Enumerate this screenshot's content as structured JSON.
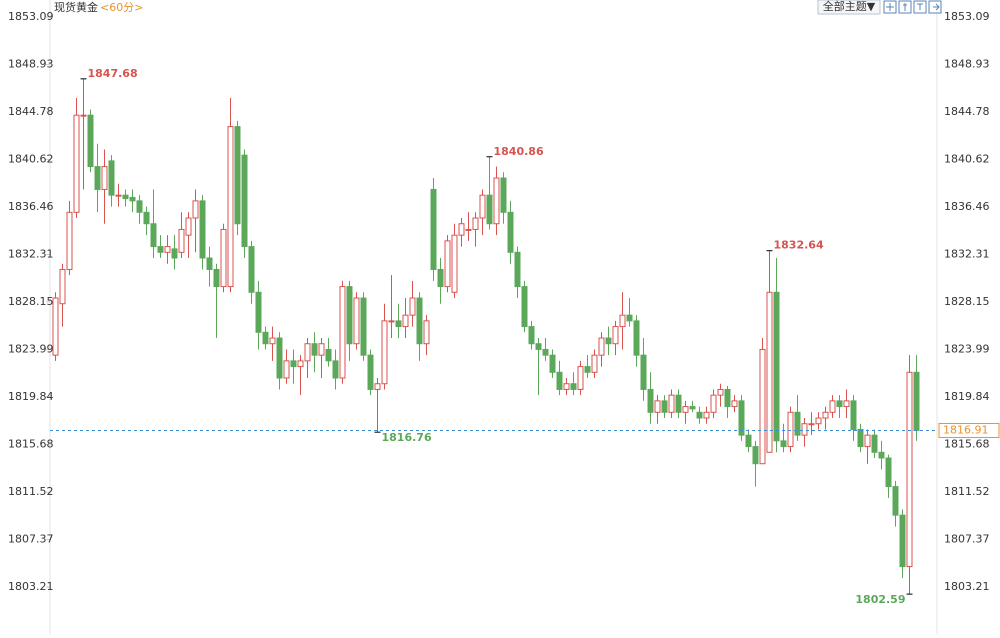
{
  "header": {
    "symbol": "现货黄金",
    "period": "<60分>",
    "theme_button": "全部主题▼"
  },
  "chart_data": {
    "type": "candlestick",
    "ylim": [
      1799.1,
      1854.14
    ],
    "yticks": [
      1853.09,
      1848.93,
      1844.78,
      1840.62,
      1836.46,
      1832.31,
      1828.15,
      1823.99,
      1819.84,
      1815.68,
      1811.52,
      1807.37,
      1803.21
    ],
    "up_color": "#d9534f",
    "down_color": "#5ca85b",
    "last_price": 1816.91,
    "annotations": [
      1847.68,
      1840.86,
      1832.64,
      1816.76,
      1802.59
    ],
    "open": [
      1823.5,
      1828,
      1831,
      1836,
      1844.5,
      1844.5,
      1840,
      1838,
      1840.5,
      1837.5,
      1837.5,
      1837.3,
      1837,
      1836,
      1835,
      1833,
      1832.5,
      1832.8,
      1832.5,
      1834,
      1835.5,
      1837,
      1832,
      1831,
      1829.5,
      1829.5,
      1843.5,
      1841,
      1833,
      1829,
      1825.5,
      1824.5,
      1825,
      1821.5,
      1823,
      1822.5,
      1823,
      1824.5,
      1823.5,
      1824,
      1823,
      1821.5,
      1829.5,
      1824.5,
      1828.5,
      1823.5,
      1820.5,
      1821,
      1826.5,
      1826.5,
      1826,
      1827,
      1828.5,
      1824.5,
      1838,
      1831,
      1829.5,
      1829,
      1834,
      1834.5,
      1834.5,
      1835.5,
      1837.5,
      1835,
      1839,
      1836,
      1832.5,
      1829.5,
      1826,
      1824.5,
      1824,
      1823.5,
      1822,
      1820.5,
      1821,
      1820.5,
      1822.5,
      1822,
      1823.5,
      1825,
      1824.5,
      1826,
      1827,
      1826.5,
      1823.5,
      1820.5,
      1818.5,
      1819.5,
      1818.5,
      1820,
      1818.5,
      1819,
      1818.5,
      1818,
      1818.5,
      1820,
      1820.5,
      1819,
      1819.5,
      1816.5,
      1815.5,
      1814,
      1815,
      1829,
      1816,
      1815.5,
      1818.5,
      1816.5,
      1817.5,
      1817.5,
      1818,
      1818.5,
      1819.5,
      1819,
      1819.5,
      1817,
      1815.5,
      1816.5,
      1815,
      1814.5,
      1812,
      1809.5,
      1805,
      1822
    ],
    "high": [
      1829,
      1831.5,
      1837,
      1846,
      1847.68,
      1845,
      1842,
      1841.5,
      1841,
      1838.5,
      1838,
      1838,
      1837.5,
      1836.5,
      1838,
      1834,
      1834,
      1834,
      1836,
      1836,
      1838,
      1837.5,
      1833,
      1831.5,
      1835,
      1846,
      1844,
      1841.5,
      1833.5,
      1830,
      1826,
      1826,
      1825.5,
      1824,
      1824,
      1823.5,
      1825,
      1825.5,
      1825,
      1825,
      1824,
      1830,
      1830,
      1829,
      1829,
      1824,
      1821.5,
      1828,
      1830.5,
      1828,
      1828.5,
      1830,
      1829,
      1827,
      1839,
      1832,
      1834,
      1835,
      1835.5,
      1836,
      1836,
      1838,
      1840.86,
      1840,
      1839.5,
      1837,
      1833,
      1830,
      1826.5,
      1825,
      1825,
      1824,
      1823,
      1821.5,
      1822,
      1823,
      1823.5,
      1824,
      1825.5,
      1826,
      1826.5,
      1829,
      1828.5,
      1827,
      1825,
      1822,
      1820,
      1820,
      1820.5,
      1820.5,
      1819.5,
      1819.5,
      1819,
      1819,
      1820.5,
      1821,
      1820.8,
      1820,
      1820,
      1817,
      1816,
      1825,
      1832.64,
      1832,
      1817.5,
      1819,
      1820,
      1818,
      1818.5,
      1818.5,
      1819,
      1820,
      1820,
      1820.5,
      1820,
      1817.5,
      1817,
      1817,
      1816,
      1814.8,
      1812.5,
      1810,
      1823.5,
      1823.5
    ],
    "low": [
      1823,
      1826,
      1830.5,
      1835.5,
      1838,
      1839.5,
      1836,
      1835,
      1836.5,
      1836.5,
      1836.5,
      1836,
      1835,
      1834,
      1832,
      1832,
      1831.5,
      1831,
      1832,
      1832,
      1832.5,
      1831,
      1829.5,
      1825,
      1829,
      1829,
      1834,
      1832,
      1828,
      1824,
      1824,
      1823,
      1820.5,
      1821,
      1821,
      1820,
      1821.5,
      1822,
      1821.5,
      1822.5,
      1820.5,
      1821,
      1823,
      1824,
      1823,
      1820,
      1816.76,
      1820.5,
      1825,
      1825,
      1825,
      1826,
      1823,
      1823.5,
      1830,
      1828,
      1829,
      1828.5,
      1833,
      1833.5,
      1833,
      1834,
      1834.5,
      1834,
      1835,
      1831.5,
      1828.5,
      1825.5,
      1824,
      1820,
      1823,
      1821.5,
      1820,
      1820,
      1820,
      1820,
      1821.5,
      1821.5,
      1822.5,
      1823.5,
      1823.5,
      1824,
      1826,
      1822.5,
      1819.5,
      1817.5,
      1817.5,
      1818,
      1818,
      1818,
      1817.5,
      1818.5,
      1817.5,
      1817.5,
      1818,
      1819,
      1818,
      1818.5,
      1816,
      1815,
      1812,
      1814,
      1815,
      1815,
      1815,
      1815,
      1816,
      1815.5,
      1816.5,
      1817,
      1817,
      1818,
      1818,
      1818,
      1816,
      1815,
      1814,
      1814.5,
      1813.5,
      1811,
      1808.5,
      1804,
      1802.59,
      1816
    ],
    "close": [
      1828.5,
      1831,
      1836,
      1844.5,
      1844.5,
      1840,
      1838,
      1840,
      1837.5,
      1837.5,
      1837.2,
      1837,
      1836,
      1835,
      1833,
      1832.5,
      1833,
      1832,
      1834.5,
      1835.5,
      1837,
      1832,
      1831,
      1829.5,
      1834.5,
      1843.5,
      1835,
      1833,
      1829,
      1825.5,
      1824.5,
      1825,
      1821.5,
      1823,
      1822.5,
      1823,
      1824.5,
      1823.5,
      1824.5,
      1823,
      1821.5,
      1829.5,
      1824.5,
      1828.5,
      1823.5,
      1820.5,
      1821,
      1826.5,
      1826.5,
      1826,
      1827,
      1828.5,
      1824.5,
      1826.5,
      1831,
      1829.5,
      1833.5,
      1834,
      1835,
      1834.5,
      1835.5,
      1837.5,
      1835,
      1839,
      1836,
      1832.5,
      1829.5,
      1826,
      1824.5,
      1824,
      1823.5,
      1822,
      1820.5,
      1821,
      1820.5,
      1822.5,
      1822,
      1823.5,
      1825,
      1824.5,
      1826,
      1827,
      1826.5,
      1823.5,
      1820.5,
      1818.5,
      1819.5,
      1818.5,
      1820,
      1818.5,
      1819,
      1818.8,
      1818,
      1818.5,
      1820,
      1820.5,
      1819,
      1819.5,
      1816.5,
      1815.5,
      1814,
      1824,
      1829,
      1816,
      1815.5,
      1818.5,
      1816.5,
      1817.5,
      1817.5,
      1818,
      1818.5,
      1819.5,
      1819,
      1819.5,
      1817,
      1815.5,
      1816.5,
      1815,
      1814.5,
      1812,
      1809.5,
      1805,
      1822,
      1816.91
    ]
  }
}
